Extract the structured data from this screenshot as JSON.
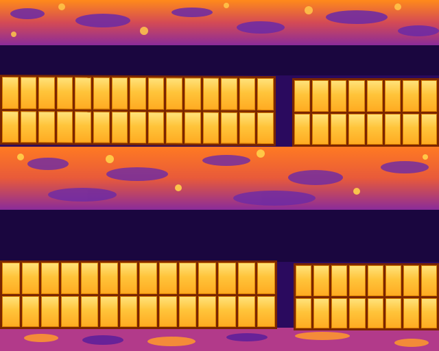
{
  "image": {
    "palette": {
      "hot": "#ffd24a",
      "warm": "#ff8a1a",
      "mid": "#c13a7a",
      "cool": "#6b2aa6",
      "cold": "#1a063f",
      "frame": "#7a2600"
    }
  },
  "arrays": [
    {
      "name": "panel-array-top-left",
      "cols": 15,
      "rows": 2
    },
    {
      "name": "panel-array-top-right",
      "cols": 8,
      "rows": 2
    },
    {
      "name": "panel-array-bottom-left",
      "cols": 14,
      "rows": 2
    },
    {
      "name": "panel-array-bottom-right",
      "cols": 8,
      "rows": 2
    }
  ]
}
